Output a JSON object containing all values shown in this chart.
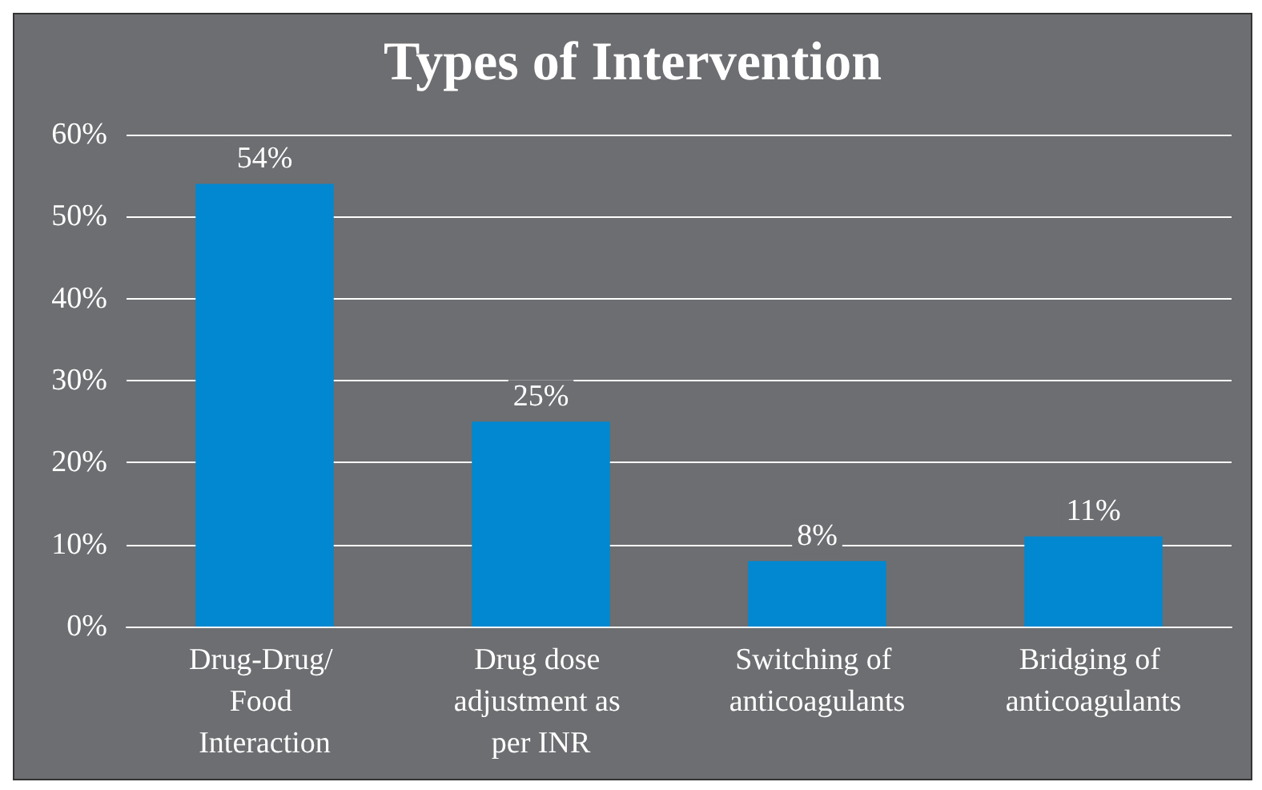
{
  "chart_data": {
    "type": "bar",
    "title": "Types of Intervention",
    "categories": [
      "Drug-Drug/ Food Interaction",
      "Drug dose adjustment as per INR",
      "Switching of anticoagulants",
      "Bridging of anticoagulants"
    ],
    "values": [
      54,
      25,
      8,
      11
    ],
    "value_labels": [
      "54%",
      "25%",
      "8%",
      "11%"
    ],
    "color": "#0288d1",
    "ylim": [
      0,
      60
    ],
    "yticks": [
      {
        "value": 0,
        "label": "0%"
      },
      {
        "value": 10,
        "label": "10%"
      },
      {
        "value": 20,
        "label": "20%"
      },
      {
        "value": 30,
        "label": "30%"
      },
      {
        "value": 40,
        "label": "40%"
      },
      {
        "value": 50,
        "label": "50%"
      },
      {
        "value": 60,
        "label": "60%"
      }
    ],
    "grid": "y"
  }
}
